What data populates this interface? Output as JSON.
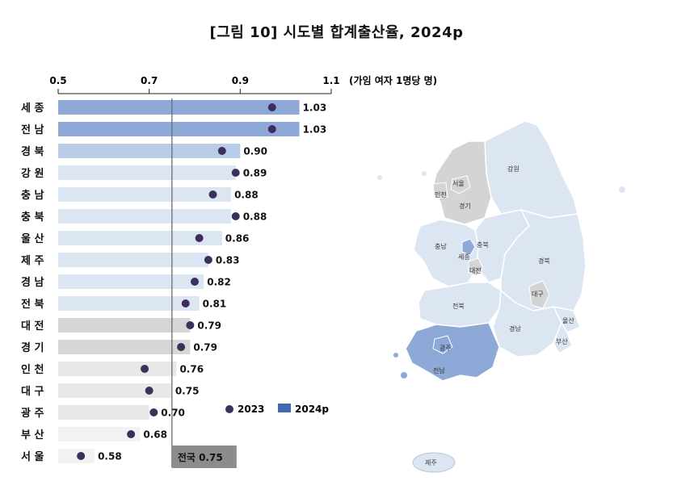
{
  "title": "[그림 10] 시도별 합계출산율, 2024p",
  "unit": "(가임 여자 1명당 명)",
  "chart_data": {
    "type": "bar",
    "title": "[그림 10] 시도별 합계출산율, 2024p",
    "xlim": [
      0.5,
      1.1
    ],
    "ticks": [
      "0.5",
      "0.7",
      "0.9",
      "1.1"
    ],
    "categories": [
      "세 종",
      "전 남",
      "경 북",
      "강 원",
      "충 남",
      "충 북",
      "울 산",
      "제 주",
      "경 남",
      "전 북",
      "대 전",
      "경 기",
      "인 천",
      "대 구",
      "광 주",
      "부 산",
      "서 울"
    ],
    "series": [
      {
        "name": "2023",
        "type": "scatter",
        "values": [
          0.97,
          0.97,
          0.86,
          0.89,
          0.84,
          0.89,
          0.81,
          0.83,
          0.8,
          0.78,
          0.79,
          0.77,
          0.69,
          0.7,
          0.71,
          0.66,
          0.55
        ]
      },
      {
        "name": "2024p",
        "type": "bar",
        "values": [
          1.03,
          1.03,
          0.9,
          0.89,
          0.88,
          0.88,
          0.86,
          0.83,
          0.82,
          0.81,
          0.79,
          0.79,
          0.76,
          0.75,
          0.7,
          0.68,
          0.58
        ]
      }
    ],
    "value_labels": [
      "1.03",
      "1.03",
      "0.90",
      "0.89",
      "0.88",
      "0.88",
      "0.86",
      "0.83",
      "0.82",
      "0.81",
      "0.79",
      "0.79",
      "0.76",
      "0.75",
      "0.70",
      "0.68",
      "0.58"
    ],
    "reference": {
      "label": "전국 0.75",
      "value": 0.75
    },
    "legend": {
      "placement": "bottom-right",
      "items": [
        "2023",
        "2024p"
      ]
    },
    "colors": {
      "dark": "#8ea9d8",
      "mid": "#b8cce8",
      "light": "#dce6f3",
      "gray": "#d6d6d6",
      "lightgray": "#e8e8e8",
      "verylight": "#f2f2f2",
      "dot": "#3d2f5c",
      "legend_bar": "#3e6ab0",
      "ref_box": "#8c8c8c"
    },
    "bar_color_keys": [
      "dark",
      "dark",
      "mid",
      "light",
      "light",
      "light",
      "light",
      "light",
      "light",
      "light",
      "gray",
      "gray",
      "lightgray",
      "lightgray",
      "lightgray",
      "verylight",
      "verylight"
    ]
  },
  "map": {
    "regions": [
      "강원",
      "경기",
      "서울",
      "인천",
      "충남",
      "충북",
      "세종",
      "대전",
      "경북",
      "대구",
      "전북",
      "경남",
      "울산",
      "부산",
      "광주",
      "전남",
      "제주"
    ],
    "colors": {
      "base": "#dce6f3",
      "gray": "#d4d4d4",
      "dark": "#8ea9d8",
      "stroke": "#ffffff"
    }
  }
}
